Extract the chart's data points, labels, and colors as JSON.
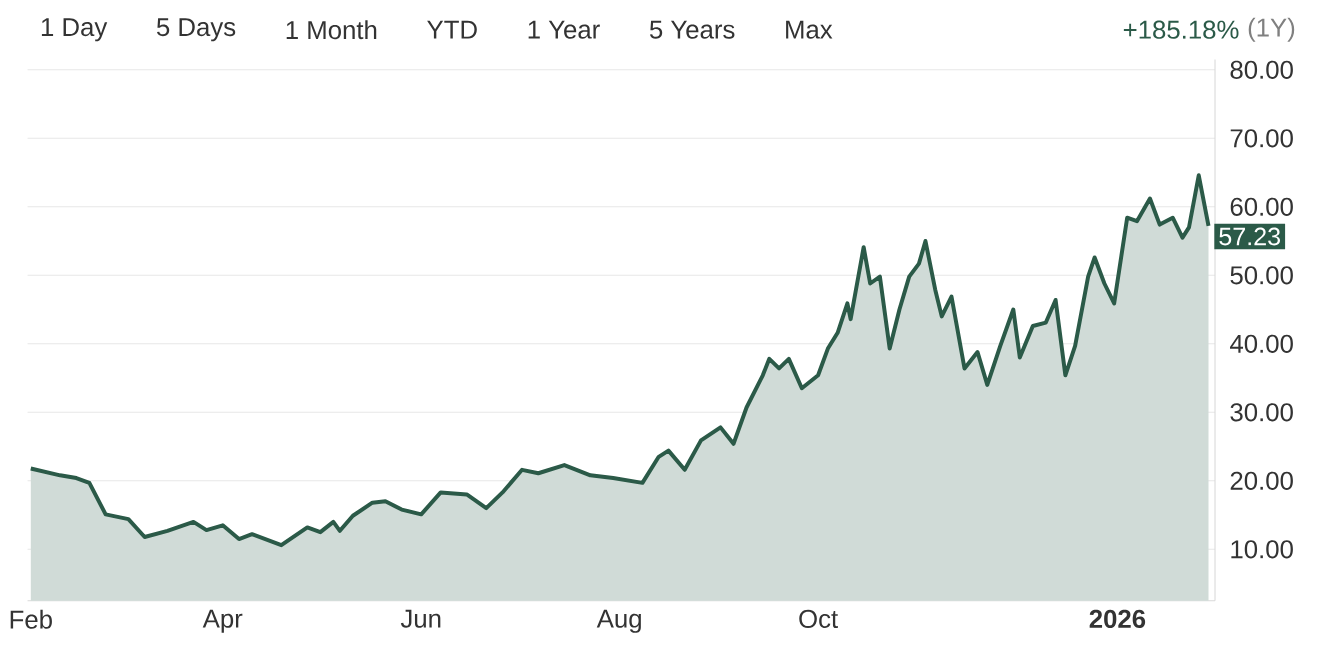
{
  "chart_data": {
    "type": "area",
    "annotations": [
      "1 Day",
      "5 Days",
      "1 Month",
      "YTD",
      "1 Year",
      "5 Years",
      "Max",
      "+185.18%",
      "(1Y)",
      {
        "text": "57.23",
        "x": "2026-01-29",
        "y": 57.23
      }
    ],
    "x": [
      "2025-02-01",
      "2025-02-10",
      "2025-02-15",
      "2025-02-19",
      "2025-02-24",
      "2025-03-03",
      "2025-03-08",
      "2025-03-15",
      "2025-03-23",
      "2025-03-27",
      "2025-04-01",
      "2025-04-06",
      "2025-04-10",
      "2025-04-19",
      "2025-04-27",
      "2025-05-01",
      "2025-05-05",
      "2025-05-07",
      "2025-05-11",
      "2025-05-17",
      "2025-05-21",
      "2025-05-26",
      "2025-06-01",
      "2025-06-07",
      "2025-06-15",
      "2025-06-21",
      "2025-06-26",
      "2025-07-02",
      "2025-07-07",
      "2025-07-15",
      "2025-07-23",
      "2025-07-30",
      "2025-08-08",
      "2025-08-13",
      "2025-08-16",
      "2025-08-21",
      "2025-08-26",
      "2025-09-01",
      "2025-09-05",
      "2025-09-09",
      "2025-09-14",
      "2025-09-16",
      "2025-09-19",
      "2025-09-22",
      "2025-09-26",
      "2025-10-01",
      "2025-10-04",
      "2025-10-07",
      "2025-10-10",
      "2025-10-11",
      "2025-10-15",
      "2025-10-17",
      "2025-10-20",
      "2025-10-23",
      "2025-10-26",
      "2025-10-29",
      "2025-11-01",
      "2025-11-03",
      "2025-11-06",
      "2025-11-08",
      "2025-11-11",
      "2025-11-15",
      "2025-11-19",
      "2025-11-22",
      "2025-11-26",
      "2025-11-30",
      "2025-12-02",
      "2025-12-06",
      "2025-12-10",
      "2025-12-13",
      "2025-12-16",
      "2025-12-19",
      "2025-12-23",
      "2025-12-25",
      "2025-12-28",
      "2025-12-31",
      "2026-01-04",
      "2026-01-07",
      "2026-01-11",
      "2026-01-14",
      "2026-01-18",
      "2026-01-21",
      "2026-01-23",
      "2026-01-26",
      "2026-01-29"
    ],
    "series": [
      {
        "color": "#2b5a48",
        "values": [
          21.8,
          20.8,
          20.4,
          19.7,
          15.1,
          14.4,
          11.8,
          12.7,
          14.0,
          12.8,
          13.5,
          11.5,
          12.2,
          10.6,
          13.2,
          12.5,
          14.0,
          12.7,
          14.9,
          16.8,
          17.0,
          15.8,
          15.1,
          18.3,
          18.0,
          16.0,
          18.3,
          21.6,
          21.1,
          22.3,
          20.8,
          20.4,
          19.7,
          23.5,
          24.4,
          21.6,
          25.9,
          27.8,
          25.4,
          30.7,
          35.4,
          37.8,
          36.4,
          37.8,
          33.5,
          35.4,
          39.3,
          41.6,
          45.9,
          43.6,
          54.1,
          48.8,
          49.8,
          39.3,
          45.0,
          49.8,
          51.7,
          55.0,
          47.9,
          44.0,
          46.9,
          36.4,
          38.8,
          34.0,
          39.7,
          45.0,
          38.0,
          42.6,
          43.1,
          46.4,
          35.4,
          39.7,
          49.8,
          52.6,
          48.8,
          45.9,
          58.4,
          57.9,
          61.2,
          57.4,
          58.4,
          55.5,
          57.0,
          64.6,
          57.23
        ]
      }
    ],
    "xlim": [
      "2025-01-31",
      "2026-01-31"
    ],
    "xticks": [
      {
        "value": "2025-02-01",
        "label": "Feb"
      },
      {
        "value": "2025-04-01",
        "label": "Apr"
      },
      {
        "value": "2025-06-01",
        "label": "Jun"
      },
      {
        "value": "2025-08-01",
        "label": "Aug"
      },
      {
        "value": "2025-10-01",
        "label": "Oct"
      },
      {
        "value": "2026-01-01",
        "label": "2026"
      }
    ],
    "ylim": [
      2.5,
      81.5
    ],
    "yticks": [
      {
        "value": 10,
        "label": "10.00"
      },
      {
        "value": 20,
        "label": "20.00"
      },
      {
        "value": 30,
        "label": "30.00"
      },
      {
        "value": 40,
        "label": "40.00"
      },
      {
        "value": 50,
        "label": "50.00"
      },
      {
        "value": 60,
        "label": "60.00"
      },
      {
        "value": 70,
        "label": "70.00"
      },
      {
        "value": 80,
        "label": "80.00"
      }
    ],
    "grid": "y"
  }
}
